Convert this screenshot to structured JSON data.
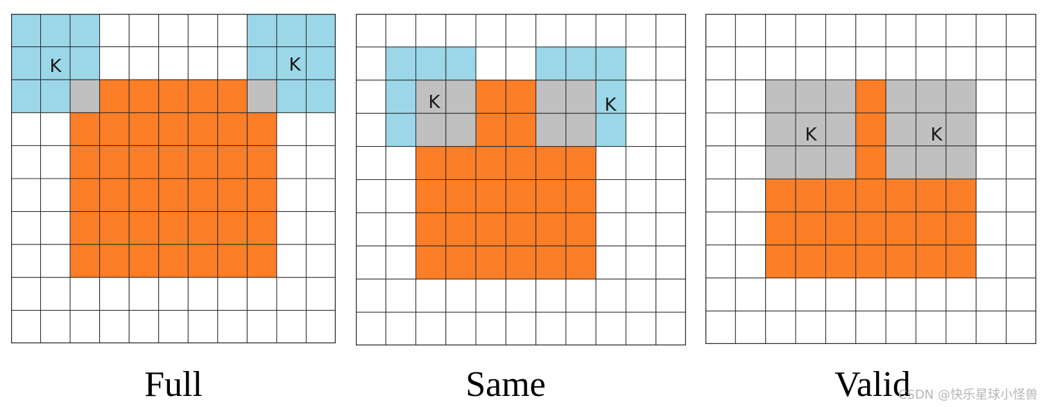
{
  "colors": {
    "kernel": "#9bd7e8",
    "overlap": "#c0c0c0",
    "output": "#fc7e26",
    "empty": "#ffffff",
    "gridline": "#2b2b2b"
  },
  "panels": [
    {
      "caption": "Full",
      "rows": 10,
      "cols": 11,
      "cells": [
        "BBB.....BBB",
        "BBB.....BBB",
        "BBGOOOOOGBB",
        "..OOOOOOO..",
        "..OOOOOOO..",
        "..OOOOOOO..",
        "..OOOOOOO..",
        "..OOOOOOO..",
        "...........",
        "..........."
      ],
      "kernel_labels": [
        "K",
        "K"
      ]
    },
    {
      "caption": "Same",
      "rows": 10,
      "cols": 11,
      "cells": [
        "...........",
        ".BBB..BBB..",
        ".BGGOOGGB..",
        ".BGGOOGGB..",
        "..OOOOOO...",
        "..OOOOOO...",
        "..OOOOOO...",
        "..OOOOOO...",
        "...........",
        "..........."
      ],
      "kernel_labels": [
        "K",
        "K"
      ]
    },
    {
      "caption": "Valid",
      "rows": 10,
      "cols": 11,
      "cells": [
        "...........",
        "...........",
        "..GGGOGGG..",
        "..GGGOGGG..",
        "..GGGOGGG..",
        "..OOOOOOO..",
        "..OOOOOOO..",
        "..OOOOOOO..",
        "...........",
        "..........."
      ],
      "kernel_labels": [
        "K",
        "K"
      ]
    }
  ],
  "watermark": "CSDN @快乐星球小怪兽"
}
